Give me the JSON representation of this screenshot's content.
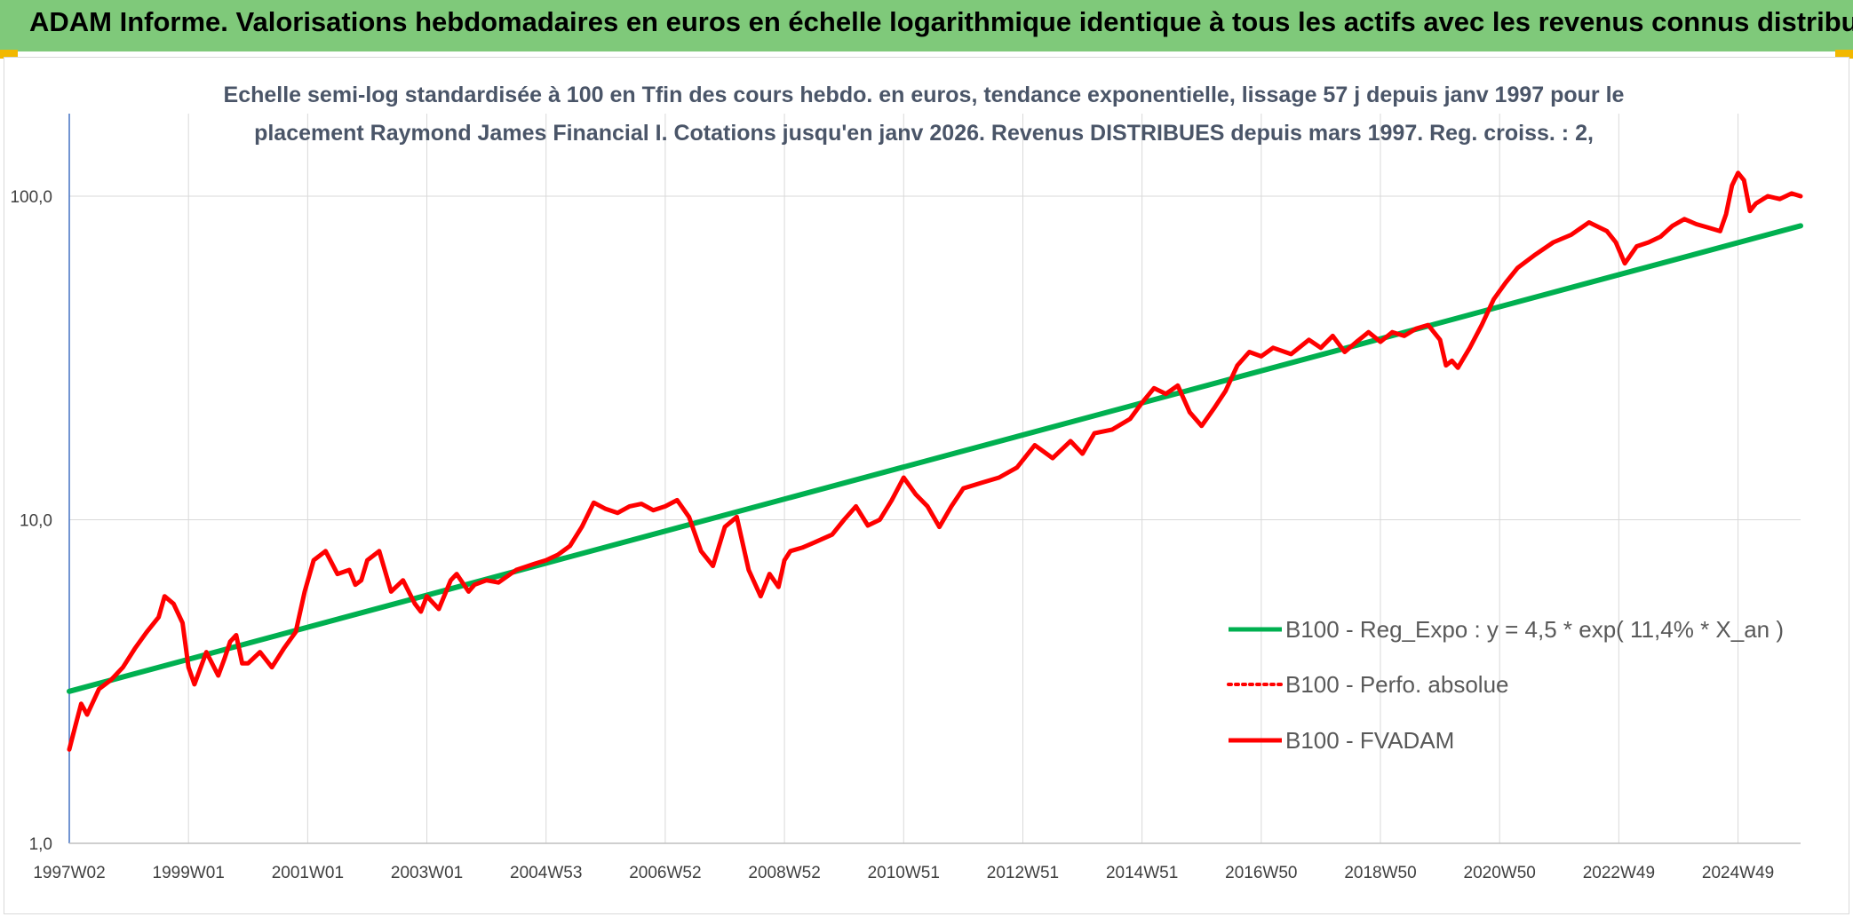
{
  "header": {
    "title": "ADAM Informe. Valorisations hebdomadaires en euros en échelle logarithmique identique à tous les actifs avec les revenus connus distribués"
  },
  "colors": {
    "banner": "#7fc97a",
    "corner": "#f2b800",
    "trend": "#00b050",
    "price": "#ff0000",
    "grid": "#d9d9d9"
  },
  "chart_data": {
    "type": "line",
    "title_lines": [
      "Echelle semi-log standardisée à 100 en Tfin des cours hebdo. en euros, tendance exponentielle, lissage 57 j depuis janv 1997 pour le",
      "placement Raymond James Financial I. Cotations jusqu'en janv 2026. Revenus DISTRIBUES depuis mars 1997. Reg. croiss. : 2,"
    ],
    "y_scale": "log",
    "ylim": [
      1,
      180
    ],
    "y_ticks": [
      "1,0",
      "10,0",
      "100,0"
    ],
    "xlim": [
      1997.0,
      2026.05
    ],
    "x_ticks": [
      {
        "label": "1997W02",
        "x": 1997.0
      },
      {
        "label": "1999W01",
        "x": 1999.0
      },
      {
        "label": "2001W01",
        "x": 2001.0
      },
      {
        "label": "2003W01",
        "x": 2003.0
      },
      {
        "label": "2004W53",
        "x": 2005.0
      },
      {
        "label": "2006W52",
        "x": 2007.0
      },
      {
        "label": "2008W52",
        "x": 2009.0
      },
      {
        "label": "2010W51",
        "x": 2011.0
      },
      {
        "label": "2012W51",
        "x": 2013.0
      },
      {
        "label": "2014W51",
        "x": 2015.0
      },
      {
        "label": "2016W50",
        "x": 2017.0
      },
      {
        "label": "2018W50",
        "x": 2019.0
      },
      {
        "label": "2020W50",
        "x": 2021.0
      },
      {
        "label": "2022W49",
        "x": 2023.0
      },
      {
        "label": "2024W49",
        "x": 2025.0
      }
    ],
    "grid": true,
    "legend_position": "bottom-right",
    "series": [
      {
        "name": "B100 - Reg_Expo : y = 4,5 * exp( 11,4% *  X_an )",
        "color": "#00b050",
        "style": "solid",
        "x": [
          1997.0,
          2026.05
        ],
        "y": [
          2.95,
          81
        ]
      },
      {
        "name": "B100 - Perfo. absolue",
        "color": "#ff0000",
        "style": "dotted",
        "x": [],
        "y": []
      },
      {
        "name": "B100 - FVADAM",
        "color": "#ff0000",
        "style": "solid",
        "x": [
          1997.0,
          1997.1,
          1997.2,
          1997.3,
          1997.5,
          1997.7,
          1997.9,
          1998.1,
          1998.3,
          1998.5,
          1998.6,
          1998.75,
          1998.9,
          1999.0,
          1999.1,
          1999.3,
          1999.5,
          1999.6,
          1999.7,
          1999.8,
          1999.9,
          2000.0,
          2000.2,
          2000.4,
          2000.6,
          2000.8,
          2000.95,
          2001.1,
          2001.3,
          2001.5,
          2001.7,
          2001.8,
          2001.9,
          2002.0,
          2002.2,
          2002.4,
          2002.6,
          2002.8,
          2002.9,
          2003.0,
          2003.2,
          2003.4,
          2003.5,
          2003.7,
          2003.8,
          2004.0,
          2004.2,
          2004.5,
          2004.8,
          2005.0,
          2005.2,
          2005.4,
          2005.6,
          2005.8,
          2006.0,
          2006.2,
          2006.4,
          2006.6,
          2006.8,
          2007.0,
          2007.2,
          2007.4,
          2007.6,
          2007.8,
          2008.0,
          2008.2,
          2008.4,
          2008.6,
          2008.75,
          2008.9,
          2009.0,
          2009.1,
          2009.3,
          2009.5,
          2009.8,
          2010.0,
          2010.2,
          2010.4,
          2010.6,
          2010.8,
          2011.0,
          2011.2,
          2011.4,
          2011.6,
          2011.8,
          2012.0,
          2012.3,
          2012.6,
          2012.9,
          2013.2,
          2013.5,
          2013.8,
          2014.0,
          2014.2,
          2014.5,
          2014.8,
          2015.0,
          2015.2,
          2015.4,
          2015.6,
          2015.8,
          2016.0,
          2016.2,
          2016.4,
          2016.6,
          2016.8,
          2017.0,
          2017.2,
          2017.5,
          2017.8,
          2018.0,
          2018.2,
          2018.4,
          2018.6,
          2018.8,
          2019.0,
          2019.2,
          2019.4,
          2019.6,
          2019.8,
          2020.0,
          2020.1,
          2020.2,
          2020.3,
          2020.5,
          2020.7,
          2020.9,
          2021.1,
          2021.3,
          2021.6,
          2021.9,
          2022.2,
          2022.5,
          2022.8,
          2022.95,
          2023.1,
          2023.3,
          2023.5,
          2023.7,
          2023.9,
          2024.1,
          2024.3,
          2024.5,
          2024.7,
          2024.8,
          2024.9,
          2025.0,
          2025.1,
          2025.2,
          2025.3,
          2025.5,
          2025.7,
          2025.9,
          2026.05
        ],
        "y": [
          1.95,
          2.3,
          2.7,
          2.5,
          3.0,
          3.2,
          3.5,
          4.0,
          4.5,
          5.0,
          5.8,
          5.5,
          4.8,
          3.5,
          3.1,
          3.9,
          3.3,
          3.7,
          4.2,
          4.4,
          3.6,
          3.6,
          3.9,
          3.5,
          4.0,
          4.5,
          6.0,
          7.5,
          8.0,
          6.8,
          7.0,
          6.3,
          6.5,
          7.5,
          8.0,
          6.0,
          6.5,
          5.5,
          5.2,
          5.8,
          5.3,
          6.5,
          6.8,
          6.0,
          6.3,
          6.5,
          6.4,
          7.0,
          7.3,
          7.5,
          7.8,
          8.3,
          9.5,
          11.3,
          10.8,
          10.5,
          11.0,
          11.2,
          10.7,
          11.0,
          11.5,
          10.2,
          8.0,
          7.2,
          9.5,
          10.2,
          7.0,
          5.8,
          6.8,
          6.2,
          7.5,
          8.0,
          8.2,
          8.5,
          9.0,
          10.0,
          11.0,
          9.6,
          10.0,
          11.5,
          13.5,
          12.0,
          11.0,
          9.5,
          11.0,
          12.5,
          13.0,
          13.5,
          14.5,
          17.0,
          15.5,
          17.5,
          16.0,
          18.5,
          19.0,
          20.5,
          23.0,
          25.5,
          24.5,
          26.0,
          21.5,
          19.5,
          22.0,
          25.0,
          30.0,
          33.0,
          32.0,
          34.0,
          32.5,
          36.0,
          34.0,
          37.0,
          33.0,
          35.5,
          38.0,
          35.5,
          38.0,
          37.0,
          39.0,
          40.0,
          36.0,
          30.0,
          31.0,
          29.5,
          34.0,
          40.0,
          48.0,
          54.0,
          60.0,
          66.0,
          72.0,
          76.0,
          83.0,
          78.0,
          72.0,
          62.0,
          70.0,
          72.0,
          75.0,
          81.0,
          85.0,
          82.0,
          80.0,
          78.0,
          88.0,
          108.0,
          118.0,
          112.0,
          90.0,
          95.0,
          100.0,
          98.0,
          102.0,
          100.0
        ]
      }
    ]
  }
}
